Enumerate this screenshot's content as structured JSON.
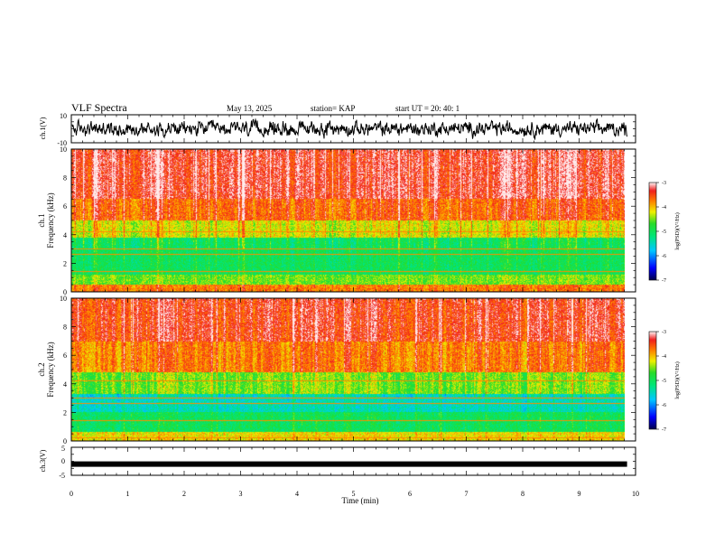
{
  "header": {
    "title": "VLF Spectra",
    "date": "May 13, 2025",
    "station": "station= KAP",
    "start": "start  UT  =   20: 40: 1"
  },
  "chart_data": [
    {
      "type": "line",
      "name": "ch1-waveform",
      "ylabel": "ch.1(V)",
      "ylim": [
        -10,
        10
      ],
      "yticks": [
        10,
        -10
      ],
      "x_range_min": [
        0,
        9.85
      ],
      "description_values": "noisy waveform roughly between -6 and +6 V"
    },
    {
      "type": "heatmap",
      "name": "ch1-spectrogram",
      "ylabel_line1": "ch.1",
      "ylabel_line2": "Frequency  (kHz)",
      "ylim": [
        0,
        10
      ],
      "yticks": [
        0,
        2,
        4,
        6,
        8,
        10
      ],
      "xlim": [
        0,
        10
      ],
      "data_x_extent": 9.85,
      "colorbar": {
        "label": "log(PSD)(V²/Hz)",
        "range": [
          -7,
          -3
        ],
        "ticks": [
          -3,
          -4,
          -5,
          -6,
          -7
        ]
      }
    },
    {
      "type": "heatmap",
      "name": "ch2-spectrogram",
      "ylabel_line1": "ch.2",
      "ylabel_line2": "Frequency  (kHz)",
      "ylim": [
        0,
        10
      ],
      "yticks": [
        0,
        2,
        4,
        6,
        8,
        10
      ],
      "xlim": [
        0,
        10
      ],
      "data_x_extent": 9.85,
      "colorbar": {
        "label": "log(PSD)(V²/Hz)",
        "range": [
          -7,
          -3
        ],
        "ticks": [
          -3,
          -4,
          -5,
          -6,
          -7
        ]
      }
    },
    {
      "type": "line",
      "name": "ch3-signal",
      "ylabel": "ch.3(V)",
      "ylim": [
        -5,
        5
      ],
      "yticks": [
        5,
        0,
        -5
      ],
      "level": -1,
      "xlabel": "Time  (min)",
      "xlim": [
        0,
        10
      ],
      "xticks": [
        0,
        1,
        2,
        3,
        4,
        5,
        6,
        7,
        8,
        9,
        10
      ]
    }
  ]
}
